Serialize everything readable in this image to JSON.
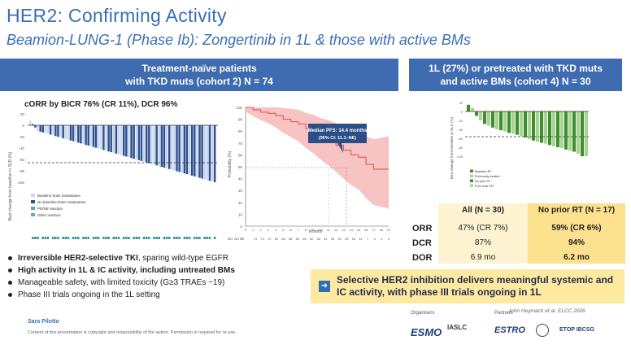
{
  "title": "HER2: Confirming Activity",
  "subtitle": "Beamion-LUNG-1 (Phase Ib): Zongertinib in 1L & those with active BMs",
  "left_header": {
    "line1": "Treatment-naïve patients",
    "line2": "with TKD muts (cohort 2) N = 74"
  },
  "right_header": {
    "line1": "1L (27%) or pretreated with TKD muts",
    "line2": "and active BMs (cohort 4) N = 30"
  },
  "corr_text": "cORR by BICR 76% (CR 11%), DCR 96%",
  "waterfall_left": {
    "ylabel": "Best change from baseline in SLD (%)",
    "yticks": [
      "20",
      "0",
      "-20",
      "-40",
      "-60",
      "-80",
      "-100"
    ],
    "legend": [
      "Baseline brain metastases",
      "No baseline brain metastases",
      "PD/NE reaction",
      "Other reaction"
    ],
    "colors": {
      "brain": "#c8d7ef",
      "nobrain": "#2f4f8f"
    }
  },
  "km": {
    "ylabel": "Probability (%)",
    "xlabel": "Months",
    "annotation_line1": "Median PFS: 14.4 months",
    "annotation_line2": "(95% CI: 11.1–NE)",
    "yticks": [
      "100",
      "90",
      "80",
      "70",
      "60",
      "50",
      "40",
      "30",
      "20",
      "10",
      "0"
    ],
    "xticks": [
      "0",
      "1",
      "2",
      "3",
      "4",
      "5",
      "6",
      "7",
      "8",
      "9",
      "10",
      "11",
      "12",
      "13",
      "14",
      "15",
      "16",
      "17",
      "18",
      "19"
    ],
    "risk_label": "No. at risk",
    "risk": [
      "74",
      "73",
      "72",
      "69",
      "68",
      "66",
      "65",
      "63",
      "52",
      "46",
      "41",
      "35",
      "30",
      "25",
      "18",
      "11",
      "7",
      "4",
      "2",
      "0"
    ],
    "color": "#e05a5a",
    "band_color": "#f6b9b9"
  },
  "waterfall_right": {
    "ylabel": "Best change from baseline in SLD (%)",
    "yticks": [
      "20",
      "0",
      "-20",
      "-40",
      "-60",
      "-80",
      "-100"
    ],
    "legend": [
      "Baseline RT",
      "Previously treated",
      "No prior RT",
      "Prior brain RT"
    ],
    "colors": {
      "dark": "#3f8f2f",
      "light": "#a9d493"
    }
  },
  "table": {
    "headers": [
      "All (N = 30)",
      "No prior RT (N = 17)"
    ],
    "rows": [
      {
        "label": "ORR",
        "all": "47% (CR 7%)",
        "norad": "59% (CR 6%)"
      },
      {
        "label": "DCR",
        "all": "87%",
        "norad": "94%"
      },
      {
        "label": "DOR",
        "all": "6.9 mo",
        "norad": "6.2 mo"
      }
    ]
  },
  "bullets": [
    {
      "bold": "Irreversible HER2-selective TKI",
      "rest": ", sparing wild-type EGFR"
    },
    {
      "bold": "High activity in 1L & IC activity, including untreated BMs",
      "rest": ""
    },
    {
      "bold": "",
      "rest": "Manageable safety, with limited toxicity (G≥3 TRAEs ~19)"
    },
    {
      "bold": "",
      "rest": "Phase III trials ongoing in the 1L setting"
    }
  ],
  "callout": "Selective HER2 inhibition delivers meaningful systemic and IC activity, with phase III trials ongoing in 1L",
  "citation": "John Heymach et al. ELCC 2026",
  "presenter": "Sara Pilotto",
  "disclaimer": "Content of this presentation is copyright and responsibility of the author. Permission is required for re-use.",
  "organisers_label": "Organisers",
  "partners_label": "Partners",
  "logos": [
    "ESMO",
    "IASLC",
    "ESTRO",
    "ETOP IBCSG"
  ]
}
